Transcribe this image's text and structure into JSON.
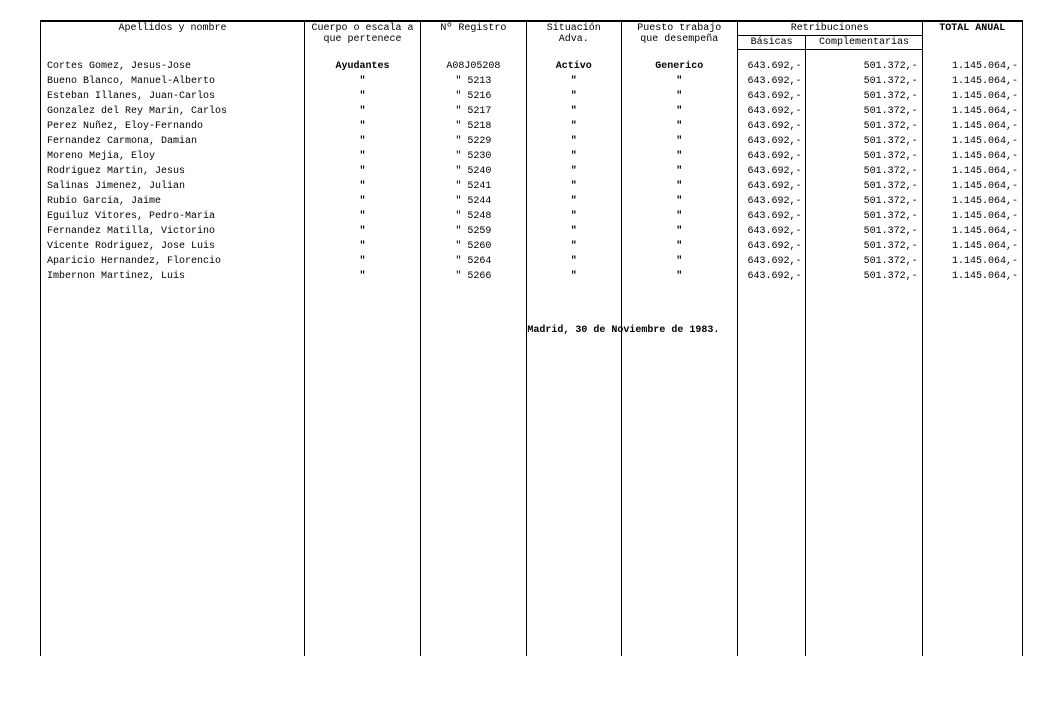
{
  "headers": {
    "name": "Apellidos y nombre",
    "cuerpo": "Cuerpo o escala a que pertenece",
    "registro": "Nº Registro",
    "situacion": "Situación Adva.",
    "puesto": "Puesto trabajo que desempeña",
    "retrib": "Retribuciones",
    "basicas": "Básicas",
    "complementarias": "Complementarias",
    "total": "TOTAL ANUAL"
  },
  "first": {
    "cuerpo": "Ayudantes",
    "registro_prefix": "A08J05208",
    "situacion": "Activo",
    "puesto": "Generico"
  },
  "rows": [
    {
      "name": "Cortes Gomez, Jesus-Jose",
      "reg": "A08J05208",
      "bas": "643.692,-",
      "comp": "501.372,-",
      "tot": "1.145.064,-",
      "first": true
    },
    {
      "name": "Bueno Blanco, Manuel-Alberto",
      "reg": "\" 5213",
      "bas": "643.692,-",
      "comp": "501.372,-",
      "tot": "1.145.064,-"
    },
    {
      "name": "Esteban Illanes, Juan-Carlos",
      "reg": "\" 5216",
      "bas": "643.692,-",
      "comp": "501.372,-",
      "tot": "1.145.064,-"
    },
    {
      "name": "Gonzalez del Rey Marin, Carlos",
      "reg": "\" 5217",
      "bas": "643.692,-",
      "comp": "501.372,-",
      "tot": "1.145.064,-"
    },
    {
      "name": "Perez Nuñez, Eloy-Fernando",
      "reg": "\" 5218",
      "bas": "643.692,-",
      "comp": "501.372,-",
      "tot": "1.145.064,-"
    },
    {
      "name": "Fernandez Carmona, Damian",
      "reg": "\" 5229",
      "bas": "643.692,-",
      "comp": "501.372,-",
      "tot": "1.145.064,-"
    },
    {
      "name": "Moreno Mejia, Eloy",
      "reg": "\" 5230",
      "bas": "643.692,-",
      "comp": "501.372,-",
      "tot": "1.145.064,-"
    },
    {
      "name": "Rodriguez Martin, Jesus",
      "reg": "\" 5240",
      "bas": "643.692,-",
      "comp": "501.372,-",
      "tot": "1.145.064,-"
    },
    {
      "name": "Salinas Jimenez, Julian",
      "reg": "\" 5241",
      "bas": "643.692,-",
      "comp": "501.372,-",
      "tot": "1.145.064,-"
    },
    {
      "name": "Rubio Garcia, Jaime",
      "reg": "\" 5244",
      "bas": "643.692,-",
      "comp": "501.372,-",
      "tot": "1.145.064,-"
    },
    {
      "name": "Eguiluz Vitores, Pedro-Maria",
      "reg": "\" 5248",
      "bas": "643.692,-",
      "comp": "501.372,-",
      "tot": "1.145.064,-"
    },
    {
      "name": "Fernandez Matilla, Victorino",
      "reg": "\" 5259",
      "bas": "643.692,-",
      "comp": "501.372,-",
      "tot": "1.145.064,-"
    },
    {
      "name": "Vicente Rodriguez, Jose Luis",
      "reg": "\" 5260",
      "bas": "643.692,-",
      "comp": "501.372,-",
      "tot": "1.145.064,-"
    },
    {
      "name": "Aparicio Hernandez, Florencio",
      "reg": "\" 5264",
      "bas": "643.692,-",
      "comp": "501.372,-",
      "tot": "1.145.064,-"
    },
    {
      "name": "Imbernon Martinez, Luis",
      "reg": "\" 5266",
      "bas": "643.692,-",
      "comp": "501.372,-",
      "tot": "1.145.064,-"
    }
  ],
  "footer": "Madrid, 30 de Noviembre de 1983.",
  "ditto": "\""
}
